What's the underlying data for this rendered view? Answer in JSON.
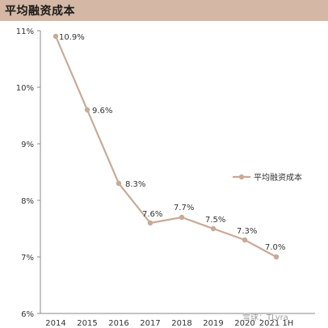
{
  "header": {
    "title": "平均融资成本"
  },
  "watermark": "雪球：TLyra",
  "chart_data": {
    "type": "line",
    "title": "",
    "xlabel": "",
    "ylabel": "",
    "categories": [
      "2014",
      "2015",
      "2016",
      "2017",
      "2018",
      "2019",
      "2020",
      "2021 1H"
    ],
    "series": [
      {
        "name": "平均融资成本",
        "values": [
          10.9,
          9.6,
          8.3,
          7.6,
          7.7,
          7.5,
          7.3,
          7.0
        ],
        "color": "#c8aa96"
      }
    ],
    "data_labels": [
      "10.9%",
      "9.6%",
      "8.3%",
      "7.6%",
      "7.7%",
      "7.5%",
      "7.3%",
      "7.0%"
    ],
    "y_ticks": [
      "6%",
      "7%",
      "8%",
      "9%",
      "10%",
      "11%"
    ],
    "y_tick_values": [
      6,
      7,
      8,
      9,
      10,
      11
    ],
    "ylim": [
      6,
      11
    ],
    "grid": false,
    "legend_position": "right"
  }
}
